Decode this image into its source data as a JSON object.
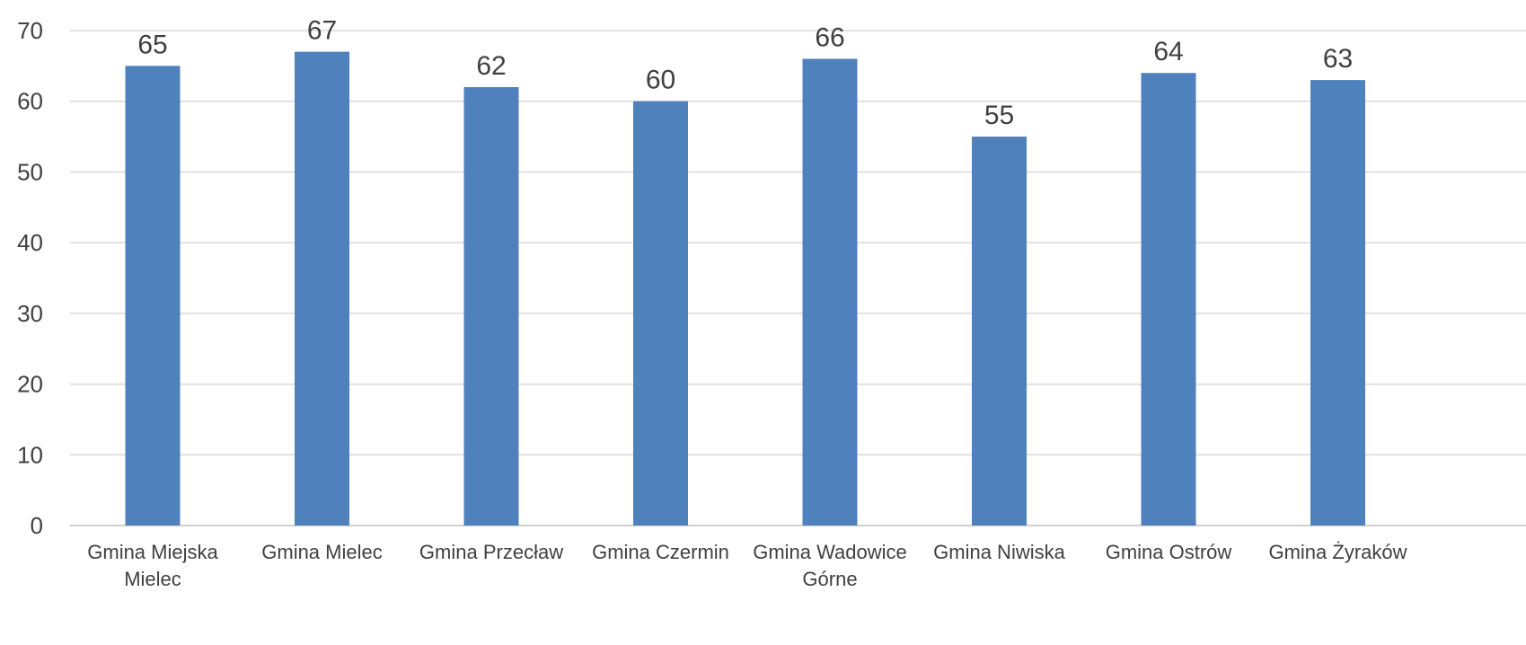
{
  "chart_data": {
    "type": "bar",
    "title": "",
    "xlabel": "",
    "ylabel": "",
    "categories": [
      [
        "Gmina Miejska",
        "Mielec"
      ],
      [
        "Gmina Mielec"
      ],
      [
        "Gmina Przecław"
      ],
      [
        "Gmina Czermin"
      ],
      [
        "Gmina Wadowice",
        "Górne"
      ],
      [
        "Gmina Niwiska"
      ],
      [
        "Gmina Ostrów"
      ],
      [
        "Gmina Żyraków"
      ]
    ],
    "values": [
      65,
      67,
      62,
      60,
      66,
      55,
      64,
      63
    ],
    "data_labels": [
      "65",
      "67",
      "62",
      "60",
      "66",
      "55",
      "64",
      "63"
    ],
    "ylim": [
      0,
      70
    ],
    "yticks": [
      "0",
      "10",
      "20",
      "30",
      "40",
      "50",
      "60",
      "70"
    ],
    "grid": true,
    "legend": "none",
    "colors": {
      "bar": "#4f81bd"
    }
  }
}
